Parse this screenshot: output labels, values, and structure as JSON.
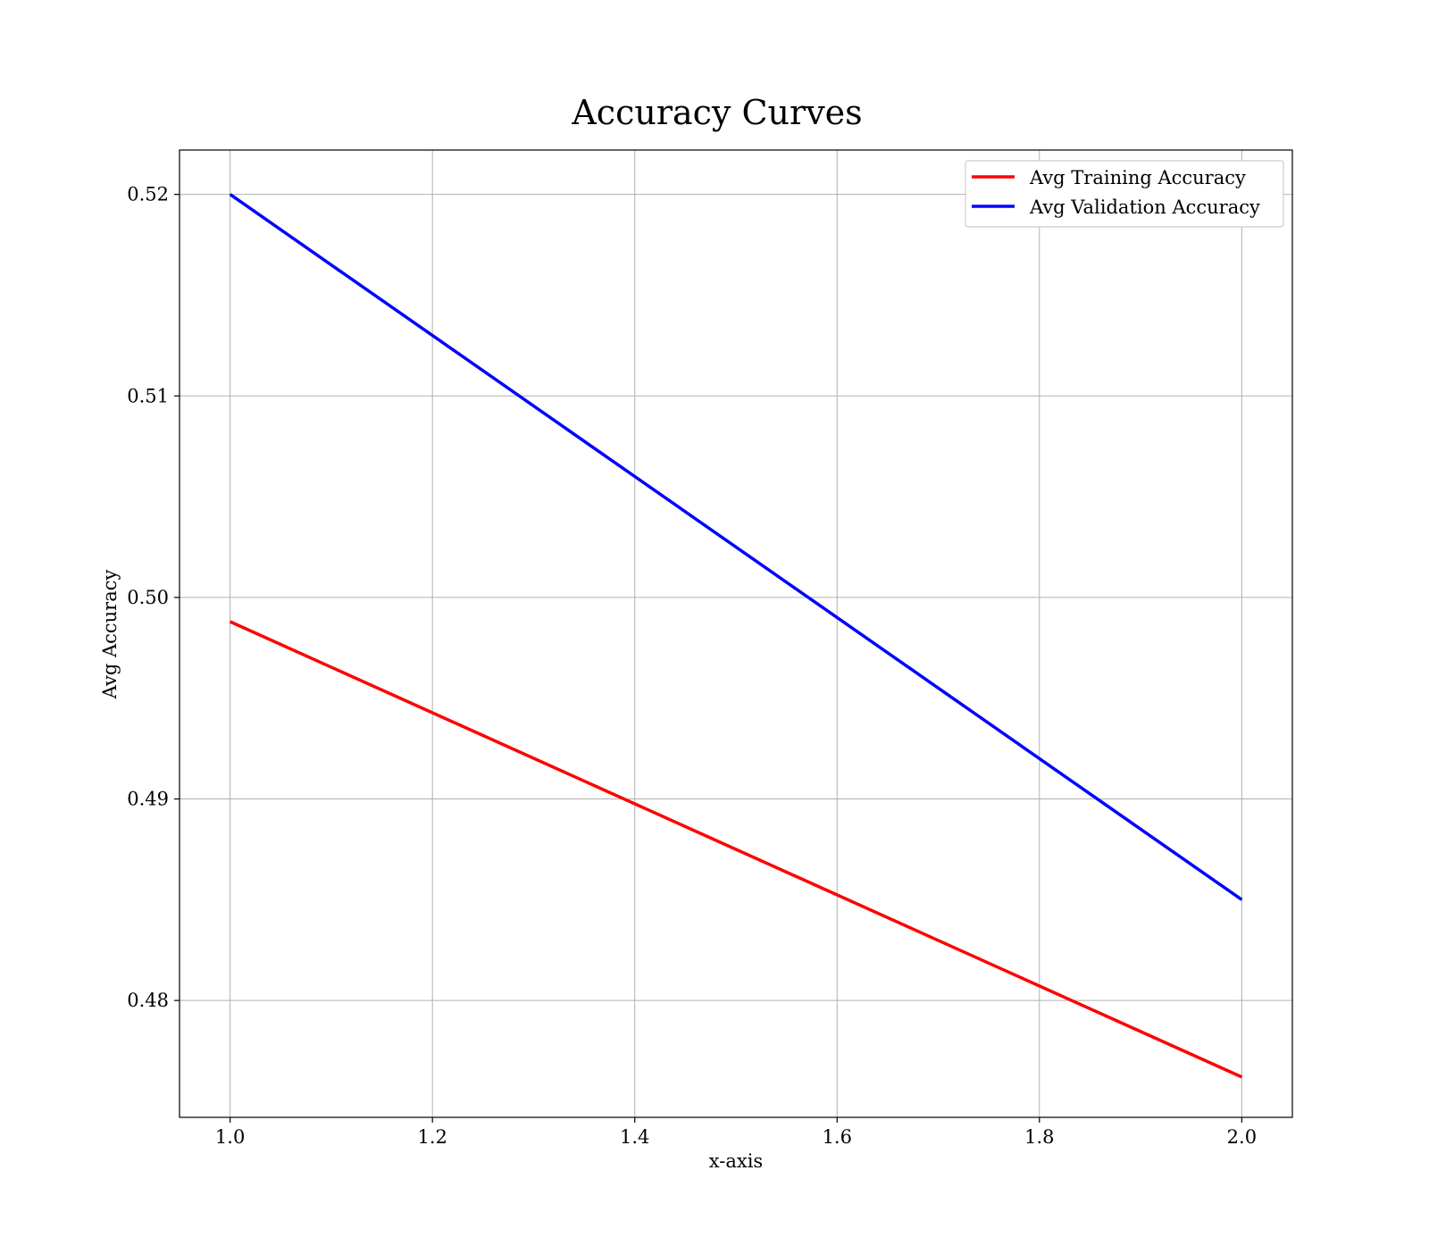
{
  "chart_data": {
    "type": "line",
    "title": "Accuracy Curves",
    "xlabel": "x-axis",
    "ylabel": "Avg Accuracy",
    "x": [
      1.0,
      2.0
    ],
    "xlim": [
      0.95,
      2.05
    ],
    "ylim": [
      0.4742,
      0.5222
    ],
    "xticks": [
      1.0,
      1.2,
      1.4,
      1.6,
      1.8,
      2.0
    ],
    "xtick_labels": [
      "1.0",
      "1.2",
      "1.4",
      "1.6",
      "1.8",
      "2.0"
    ],
    "yticks": [
      0.48,
      0.49,
      0.5,
      0.51,
      0.52
    ],
    "ytick_labels": [
      "0.48",
      "0.49",
      "0.50",
      "0.51",
      "0.52"
    ],
    "grid": true,
    "legend_position": "top-right",
    "series": [
      {
        "name": "Avg Training Accuracy",
        "color": "#ff0000",
        "values": [
          0.4988,
          0.4762
        ]
      },
      {
        "name": "Avg Validation Accuracy",
        "color": "#0000ff",
        "values": [
          0.52,
          0.485
        ]
      }
    ]
  }
}
